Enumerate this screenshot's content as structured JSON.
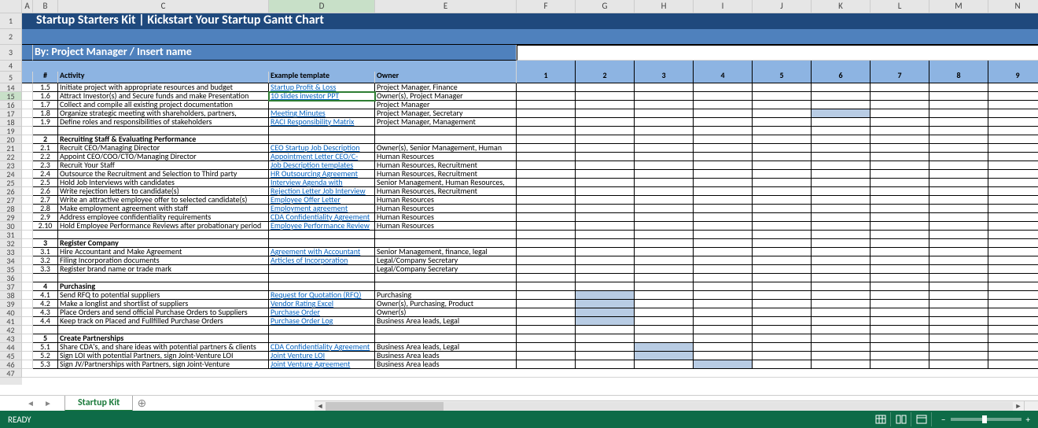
{
  "status": {
    "ready": "READY"
  },
  "tabs": {
    "active": "Startup Kit"
  },
  "title": "Startup Starters Kit | Kickstart Your Startup Gantt Chart",
  "subtitle": "By: Project Manager / Insert name",
  "columns": [
    "A",
    "B",
    "C",
    "D",
    "E",
    "F",
    "G",
    "H",
    "I",
    "J",
    "K",
    "L",
    "M",
    "N"
  ],
  "colHeaders": {
    "num": "#",
    "activity": "Activity",
    "example": "Example template",
    "owner": "Owner"
  },
  "timelineHeaders": [
    "1",
    "2",
    "3",
    "4",
    "5",
    "6",
    "7",
    "8",
    "9"
  ],
  "rowLabels": [
    "1",
    "2",
    "3",
    "4",
    "5",
    "14",
    "15",
    "16",
    "17",
    "18",
    "19",
    "20",
    "21",
    "22",
    "23",
    "24",
    "25",
    "26",
    "27",
    "28",
    "29",
    "30",
    "31",
    "32",
    "33",
    "34",
    "35",
    "36",
    "37",
    "38",
    "39",
    "40",
    "41",
    "42",
    "43",
    "44",
    "45",
    "46",
    "47"
  ],
  "rows": [
    {
      "n": "1.5",
      "act": "Initiate project with appropriate resources and budget",
      "tpl": "Startup Profit & Loss",
      "tplLink": true,
      "own": "Project Manager, Finance",
      "g": []
    },
    {
      "n": "1.6",
      "act": "Attract Investor(s) and Secure funds and make Presentation",
      "tpl": "10 slides investor PPT",
      "tplLink": true,
      "own": "Owner(s), Project Manager",
      "g": [],
      "selected": true
    },
    {
      "n": "1.7",
      "act": "Collect and compile all existing project documentation",
      "tpl": "",
      "own": "Project Manager",
      "g": []
    },
    {
      "n": "1.8",
      "act": "Organize strategic meeting with shareholders, partners,",
      "tpl": "Meeting Minutes",
      "tplLink": true,
      "own": "Project Manager, Secretary",
      "g": [
        6
      ]
    },
    {
      "n": "1.9",
      "act": "Define roles and responsibilities of stakeholders",
      "tpl": "RACI Responsibility Matrix",
      "tplLink": true,
      "own": "Project Manager, Management",
      "g": []
    },
    {
      "blank": true
    },
    {
      "n": "2",
      "act": "Recruiting Staff & Evaluating Performance",
      "bold": true,
      "tpl": "",
      "own": "",
      "g": []
    },
    {
      "n": "2.1",
      "act": "Recruit CEO/Managing Director",
      "tpl": "CEO Startup Job Description",
      "tplLink": true,
      "own": "Owner(s), Senior Management, Human",
      "g": []
    },
    {
      "n": "2.2",
      "act": "Appoint CEO/COO/CTO/Managing Director",
      "tpl": "Appointment Letter CEO/C-",
      "tplLink": true,
      "own": "Human Resources",
      "g": []
    },
    {
      "n": "2.3",
      "act": "Recruit Your Staff",
      "tpl": "Job Description templates",
      "tplLink": true,
      "own": "Human Resources, Recruitment",
      "g": []
    },
    {
      "n": "2.4",
      "act": "Outsource the Recruitment and Selection to Third party",
      "tpl": "HR Outsourcing Agreement",
      "tplLink": true,
      "own": "Human Resources, Recruitment",
      "g": []
    },
    {
      "n": "2.5",
      "act": "Hold Job Interviews with candidates",
      "tpl": "Interview Agenda with",
      "tplLink": true,
      "own": "Senior Management, Human Resources,",
      "g": []
    },
    {
      "n": "2.6",
      "act": "Write rejection letters to candidate(s)",
      "tpl": "Rejection Letter Job Interview",
      "tplLink": true,
      "own": "Human Resources, Recruitment",
      "g": []
    },
    {
      "n": "2.7",
      "act": "Write an attractive employee offer to selected candidate(s)",
      "tpl": "Employee Offer Letter",
      "tplLink": true,
      "own": "Human Resources",
      "g": []
    },
    {
      "n": "2.8",
      "act": "Make employment agreement with staff",
      "tpl": "Employment agreement",
      "tplLink": true,
      "own": "Human Resources",
      "g": []
    },
    {
      "n": "2.9",
      "act": "Address employee confidentiality requirements",
      "tpl": "CDA Confidentiality Agreement",
      "tplLink": true,
      "own": "Human Resources",
      "g": []
    },
    {
      "n": "2.10",
      "act": "Hold Employee Performance Reviews after probationary period",
      "tpl": "Employee Performance Review",
      "tplLink": true,
      "own": "Human Resources",
      "g": []
    },
    {
      "blank": true
    },
    {
      "n": "3",
      "act": "Register Company",
      "bold": true,
      "tpl": "",
      "own": "",
      "g": []
    },
    {
      "n": "3.1",
      "act": "Hire Accountant and Make Agreement",
      "tpl": "Agreement with Accountant",
      "tplLink": true,
      "own": "Senior Management, finance, legal",
      "g": []
    },
    {
      "n": "3.2",
      "act": "Filing Incorporation documents",
      "tpl": "Articles of Incorporation",
      "tplLink": true,
      "own": "Legal/Company Secretary",
      "g": []
    },
    {
      "n": "3.3",
      "act": "Register brand name or trade mark",
      "tpl": "",
      "own": "Legal/Company Secretary",
      "g": []
    },
    {
      "blank": true
    },
    {
      "n": "4",
      "act": "Purchasing",
      "bold": true,
      "tpl": "",
      "own": "",
      "g": []
    },
    {
      "n": "4.1",
      "act": "Send RFQ to potential suppliers",
      "tpl": "Request for Quotation (RFQ)",
      "tplLink": true,
      "own": "Purchasing",
      "g": [
        2
      ]
    },
    {
      "n": "4.2",
      "act": "Make a longlist and shortlist of suppliers",
      "tpl": "Vendor Rating Excel",
      "tplLink": true,
      "own": "Owner(s), Purchasing, Product",
      "g": [
        2
      ]
    },
    {
      "n": "4.3",
      "act": "Place Orders and send official Purchase Orders to Suppliers",
      "tpl": "Purchase Order",
      "tplLink": true,
      "own": "Owner(s)",
      "g": [
        2
      ]
    },
    {
      "n": "4.4",
      "act": "Keep track on Placed and Fullfilled Purchase Orders",
      "tpl": "Purchase Order Log",
      "tplLink": true,
      "own": "Business Area leads, Legal",
      "g": [
        2
      ]
    },
    {
      "blank": true
    },
    {
      "n": "5",
      "act": "Create Partnerships",
      "bold": true,
      "tpl": "",
      "own": "",
      "g": []
    },
    {
      "n": "5.1",
      "act": "Share CDA's, and share ideas with potential partners & clients",
      "tpl": "CDA Confidentiality Agreement",
      "tplLink": true,
      "own": "Business Area leads, Legal",
      "g": [
        3
      ]
    },
    {
      "n": "5.2",
      "act": "Sign LOI with potential Partners,  sign Joint-Venture LOI",
      "tpl": "Joint Venture LOI",
      "tplLink": true,
      "own": "Business Area leads",
      "g": [
        3
      ]
    },
    {
      "n": "5.3",
      "act": "Sign JV/Partnerships with Partners,  sign Joint-Venture",
      "tpl": "Joint Venture Agreement",
      "tplLink": true,
      "own": "Business Area leads",
      "g": [
        4
      ]
    }
  ],
  "colWidths": {
    "A": 14,
    "B": 32,
    "C": 268,
    "D": 135,
    "E": 180,
    "tl": 75
  },
  "rowHeights": {
    "banner1": 20,
    "banner2": 20,
    "banner3": 20,
    "banner4": 14,
    "banner5": 15,
    "data": 11
  },
  "colors": {
    "darkBlue": "#1f497d",
    "medBlue": "#4f81bd",
    "lightBlue": "#8db4e2",
    "gantt": "#b8cce4",
    "status": "#0e6b47",
    "link": "#0563c1"
  },
  "activeCell": {
    "row": "15",
    "col": "D"
  }
}
